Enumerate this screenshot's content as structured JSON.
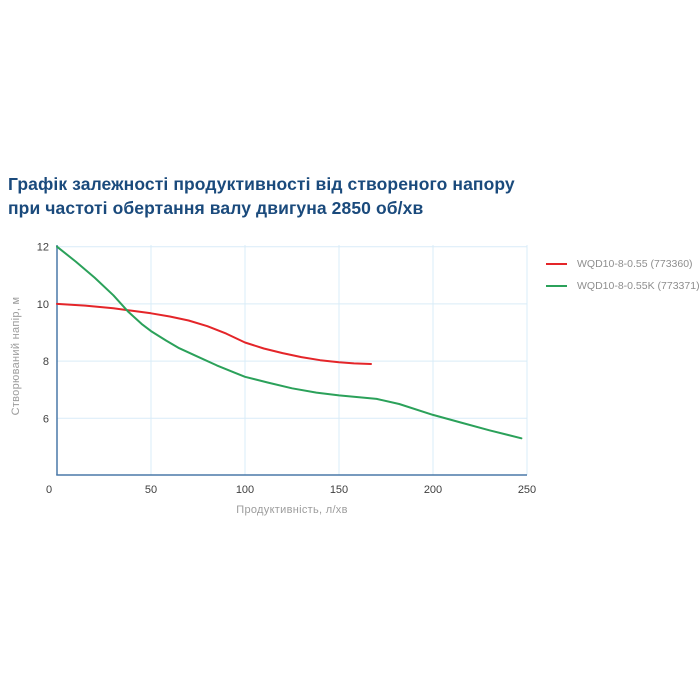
{
  "title": {
    "line1": "Графік залежності продуктивності від створеного напору",
    "line2": "при частоті обертання валу двигуна 2850 об/хв",
    "color": "#1a4a7c"
  },
  "chart_data": {
    "type": "line",
    "title": "Графік залежності продуктивності від створеного напору при частоті обертання валу двигуна 2850 об/хв",
    "xlabel": "Продуктивність, л/хв",
    "ylabel": "Створюваний напір, м",
    "xlim": [
      0,
      250
    ],
    "ylim": [
      4,
      12
    ],
    "x_ticks": [
      0,
      50,
      100,
      150,
      200,
      250
    ],
    "y_ticks": [
      6,
      8,
      10,
      12
    ],
    "grid": true,
    "legend_position": "top-right-outside",
    "colors": {
      "axis": "#4a79a8",
      "grid": "#d9ecf8",
      "tick_text": "#3f3f3f",
      "axis_label_text": "#9c9c9c",
      "legend_text": "#8e8e8e"
    },
    "series": [
      {
        "name": "WQD10-8-0.55 (773360)",
        "color": "#e42529",
        "points": [
          [
            0,
            10.0
          ],
          [
            15,
            9.94
          ],
          [
            30,
            9.85
          ],
          [
            40,
            9.76
          ],
          [
            50,
            9.67
          ],
          [
            60,
            9.56
          ],
          [
            70,
            9.42
          ],
          [
            80,
            9.22
          ],
          [
            90,
            8.96
          ],
          [
            100,
            8.65
          ],
          [
            110,
            8.44
          ],
          [
            120,
            8.28
          ],
          [
            130,
            8.14
          ],
          [
            140,
            8.03
          ],
          [
            150,
            7.96
          ],
          [
            158,
            7.92
          ],
          [
            167,
            7.9
          ]
        ]
      },
      {
        "name": "WQD10-8-0.55K (773371)",
        "color": "#2ba15a",
        "points": [
          [
            0,
            12.0
          ],
          [
            10,
            11.48
          ],
          [
            20,
            10.92
          ],
          [
            30,
            10.3
          ],
          [
            38,
            9.72
          ],
          [
            45,
            9.3
          ],
          [
            50,
            9.05
          ],
          [
            58,
            8.72
          ],
          [
            65,
            8.45
          ],
          [
            75,
            8.15
          ],
          [
            85,
            7.85
          ],
          [
            95,
            7.58
          ],
          [
            100,
            7.45
          ],
          [
            112,
            7.25
          ],
          [
            125,
            7.05
          ],
          [
            138,
            6.9
          ],
          [
            150,
            6.8
          ],
          [
            160,
            6.74
          ],
          [
            170,
            6.68
          ],
          [
            182,
            6.5
          ],
          [
            200,
            6.12
          ],
          [
            215,
            5.85
          ],
          [
            230,
            5.58
          ],
          [
            247,
            5.3
          ]
        ]
      }
    ]
  }
}
